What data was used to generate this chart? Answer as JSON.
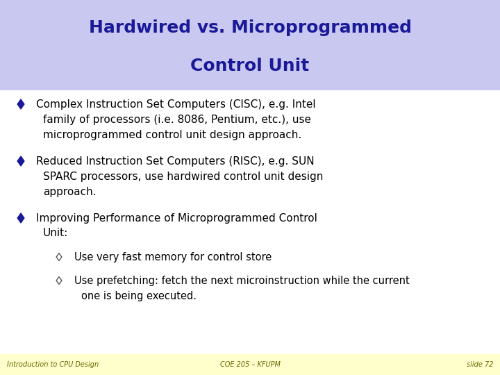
{
  "title_line1": "Hardwired vs. Microprogrammed",
  "title_line2": "Control Unit",
  "title_color": "#1a1a99",
  "title_bg_color": "#c8c8f0",
  "title_fontsize": 18,
  "body_fontsize": 11,
  "sub_fontsize": 10.5,
  "footer_bg_color": "#ffffcc",
  "footer_text_left": "Introduction to CPU Design",
  "footer_text_center": "COE 205 – KFUPM",
  "footer_text_right": "slide 72",
  "footer_fontsize": 7,
  "bg_color": "#ffffff",
  "bullet_color": "#1a1a99",
  "text_color": "#000000",
  "bullet1_line1": "Complex Instruction Set Computers (CISC), e.g. Intel",
  "bullet1_line2": "family of processors (i.e. 8086, Pentium, etc.), use",
  "bullet1_line3": "microprogrammed control unit design approach.",
  "bullet2_line1": "Reduced Instruction Set Computers (RISC), e.g. SUN",
  "bullet2_line2": "SPARC processors, use hardwired control unit design",
  "bullet2_line3": "approach.",
  "bullet3_line1": "Improving Performance of Microprogrammed Control",
  "bullet3_line2": "Unit:",
  "sub_bullet1": "Use very fast memory for control store",
  "sub_bullet2_line1": "Use prefetching: fetch the next microinstruction while the current",
  "sub_bullet2_line2": "one is being executed."
}
